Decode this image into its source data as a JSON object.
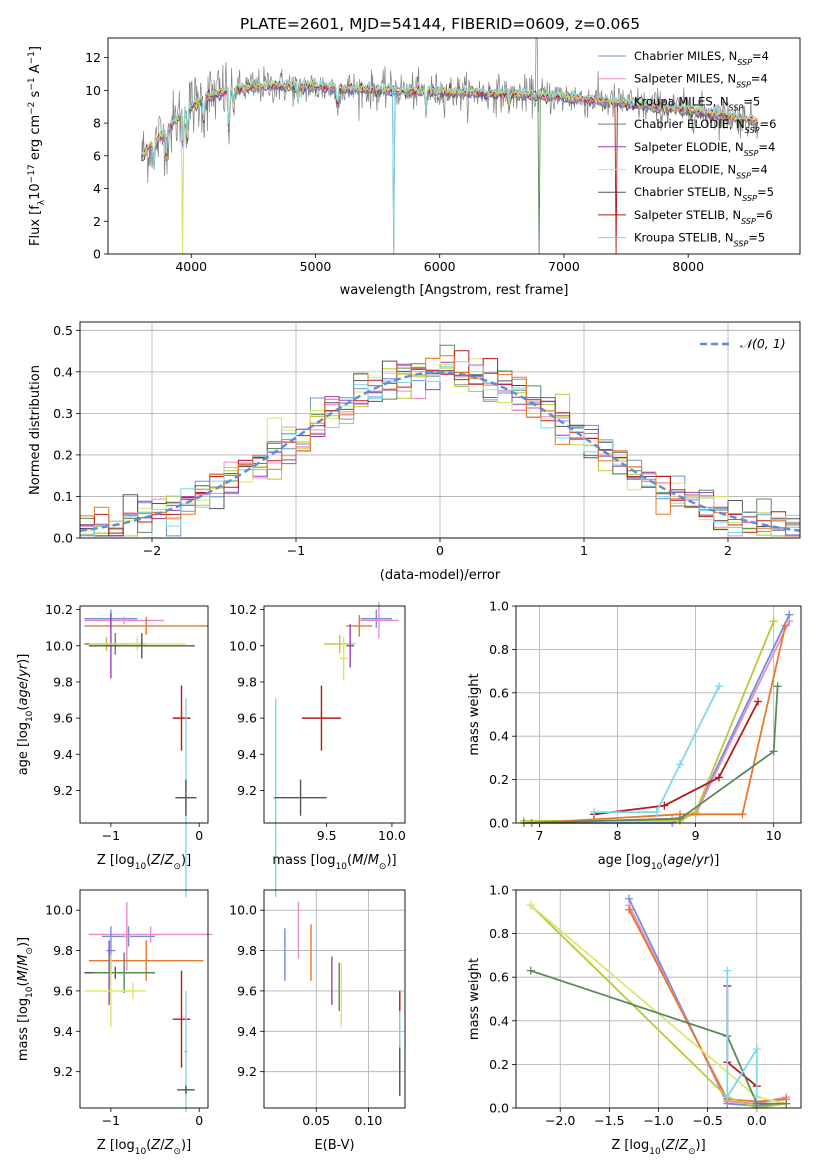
{
  "title": "PLATE=2601, MJD=54144, FIBERID=0609, z=0.065",
  "legend_labels": [
    "N",
    "SSP"
  ],
  "models": [
    {
      "name": "Chabrier MILES",
      "n": "=4",
      "color": "#6f8fdc"
    },
    {
      "name": "Salpeter MILES",
      "n": "=4",
      "color": "#e88cc8"
    },
    {
      "name": "Kroupa MILES",
      "n": "=5",
      "color": "#bcc83a"
    },
    {
      "name": "Chabrier ELODIE",
      "n": "=6",
      "color": "#5a8a5a"
    },
    {
      "name": "Salpeter ELODIE",
      "n": "=4",
      "color": "#9b3fc0"
    },
    {
      "name": "Kroupa ELODIE",
      "n": "=4",
      "color": "#d9e86a"
    },
    {
      "name": "Chabrier STELIB",
      "n": "=5",
      "color": "#555555"
    },
    {
      "name": "Salpeter STELIB",
      "n": "=6",
      "color": "#b81a1a"
    },
    {
      "name": "Kroupa STELIB",
      "n": "=5",
      "color": "#7dd8e8"
    }
  ],
  "extra_colors": {
    "orange": "#e8782a",
    "data": "#808080",
    "normal": "#5b8dd9"
  },
  "chart_data": [
    {
      "type": "line",
      "id": "spectrum",
      "xlabel": "wavelength [Angstrom, rest frame]",
      "ylabel_parts": [
        "Flux [f",
        "λ",
        "10",
        "−17",
        " erg cm",
        "−2",
        " s",
        "−1",
        " A",
        "−1",
        "]"
      ],
      "xlim": [
        3330,
        8900
      ],
      "ylim": [
        0,
        13.2
      ],
      "xticks": [
        4000,
        5000,
        6000,
        7000,
        8000
      ],
      "xtick_labels": [
        "4000",
        "5000",
        "6000",
        "7000",
        "8000"
      ],
      "yticks": [
        0,
        2,
        4,
        6,
        8,
        10,
        12
      ],
      "ytick_labels": [
        "0",
        "2",
        "4",
        "6",
        "8",
        "10",
        "12"
      ],
      "continuum_knots": [
        [
          3600,
          6.0
        ],
        [
          3700,
          6.8
        ],
        [
          3800,
          7.5
        ],
        [
          3950,
          8.8
        ],
        [
          4100,
          9.5
        ],
        [
          4300,
          10.0
        ],
        [
          4600,
          10.3
        ],
        [
          5000,
          10.2
        ],
        [
          5500,
          10.0
        ],
        [
          6000,
          9.9
        ],
        [
          6500,
          9.8
        ],
        [
          7000,
          9.6
        ],
        [
          7500,
          9.2
        ],
        [
          8000,
          8.8
        ],
        [
          8500,
          8.2
        ],
        [
          8550,
          8.0
        ]
      ]
    },
    {
      "type": "step",
      "id": "residuals",
      "xlabel": "(data-model)/error",
      "ylabel": "Normed distribution",
      "xlim": [
        -2.5,
        2.5
      ],
      "ylim": [
        0,
        0.52
      ],
      "xticks": [
        -2,
        -1,
        0,
        1,
        2
      ],
      "xtick_labels": [
        "−2",
        "−1",
        "0",
        "1",
        "2"
      ],
      "yticks": [
        0,
        0.1,
        0.2,
        0.3,
        0.4,
        0.5
      ],
      "ytick_labels": [
        "0.0",
        "0.1",
        "0.2",
        "0.3",
        "0.4",
        "0.5"
      ],
      "grid": true,
      "normal_label": "𝒩(0, 1)",
      "bin_width": 0.1
    },
    {
      "type": "errorbar",
      "id": "age_vs_Z",
      "xlabel": "Z [log10(Z/Z⊙)]",
      "ylabel": "age [log10(age/yr)]",
      "xlim": [
        -1.35,
        0.1
      ],
      "ylim": [
        9.02,
        10.22
      ],
      "xticks": [
        -1,
        0
      ],
      "xtick_labels": [
        "−1",
        "0"
      ],
      "yticks": [
        9.2,
        9.4,
        9.6,
        9.8,
        10.0,
        10.2
      ],
      "ytick_labels": [
        "9.2",
        "9.4",
        "9.6",
        "9.8",
        "10.0",
        "10.2"
      ],
      "points": [
        {
          "m": 0,
          "x": -1.0,
          "xerr": 0.3,
          "y": 10.15,
          "yerr": 0.05
        },
        {
          "m": 1,
          "x": -0.85,
          "xerr": 0.45,
          "y": 10.14,
          "yerr": 0.02
        },
        {
          "m": "orange",
          "x": -0.6,
          "xerr": 0.7,
          "y": 10.11,
          "yerr": 0.05
        },
        {
          "m": 2,
          "x": -1.05,
          "xerr": 0.25,
          "y": 10.01,
          "yerr": 0.04
        },
        {
          "m": 3,
          "x": -0.95,
          "xerr": 0.35,
          "y": 10.01,
          "yerr": 0.06
        },
        {
          "m": 4,
          "x": -1.0,
          "xerr": 0.05,
          "y": 10.0,
          "yerr": 0.18
        },
        {
          "m": 5,
          "x": -0.7,
          "xerr": 0.55,
          "y": 10.01,
          "yerr": 0.04
        },
        {
          "m": 6,
          "x": -0.65,
          "xerr": 0.6,
          "y": 10.0,
          "yerr": 0.07
        },
        {
          "m": 7,
          "x": -0.2,
          "xerr": 0.1,
          "y": 9.6,
          "yerr": 0.18
        },
        {
          "m": 8,
          "x": -0.15,
          "xerr": 0.1,
          "y": 9.16,
          "yerr": 0.55
        },
        {
          "m": 6,
          "x": -0.15,
          "xerr": 0.12,
          "y": 9.16,
          "yerr": 0.1
        }
      ]
    },
    {
      "type": "errorbar",
      "id": "age_vs_mass",
      "xlabel": "mass [log10(M/M⊙)]",
      "xlim": [
        9.02,
        10.1
      ],
      "ylim": [
        9.02,
        10.22
      ],
      "xticks": [
        9.5,
        10.0
      ],
      "xtick_labels": [
        "9.5",
        "10.0"
      ],
      "yticks": [
        9.2,
        9.4,
        9.6,
        9.8,
        10.0,
        10.2
      ],
      "ytick_labels": [
        "9.2",
        "9.4",
        "9.6",
        "9.8",
        "10.0",
        "10.2"
      ],
      "points": [
        {
          "m": 0,
          "x": 9.88,
          "xerr": 0.12,
          "y": 10.15,
          "yerr": 0.05
        },
        {
          "m": 1,
          "x": 9.9,
          "xerr": 0.15,
          "y": 10.14,
          "yerr": 0.1
        },
        {
          "m": "orange",
          "x": 9.75,
          "xerr": 0.1,
          "y": 10.11,
          "yerr": 0.06
        },
        {
          "m": 2,
          "x": 9.6,
          "xerr": 0.12,
          "y": 10.01,
          "yerr": 0.05
        },
        {
          "m": 4,
          "x": 9.68,
          "xerr": 0.03,
          "y": 10.0,
          "yerr": 0.12
        },
        {
          "m": 5,
          "x": 9.63,
          "xerr": 0.03,
          "y": 9.93,
          "yerr": 0.12
        },
        {
          "m": 7,
          "x": 9.46,
          "xerr": 0.15,
          "y": 9.6,
          "yerr": 0.18
        },
        {
          "m": 8,
          "x": 9.11,
          "xerr": 0.02,
          "y": 9.16,
          "yerr": 0.55
        },
        {
          "m": 6,
          "x": 9.3,
          "xerr": 0.2,
          "y": 9.16,
          "yerr": 0.1
        }
      ]
    },
    {
      "type": "line",
      "id": "massweight_vs_age",
      "xlabel": "age [log10(age/yr)]",
      "ylabel": "mass weight",
      "xlim": [
        6.7,
        10.35
      ],
      "ylim": [
        0,
        1
      ],
      "xticks": [
        7,
        8,
        9,
        10
      ],
      "xtick_labels": [
        "7",
        "8",
        "9",
        "10"
      ],
      "yticks": [
        0,
        0.2,
        0.4,
        0.6,
        0.8,
        1.0
      ],
      "ytick_labels": [
        "0.0",
        "0.2",
        "0.4",
        "0.6",
        "0.8",
        "1.0"
      ],
      "grid": true,
      "series": [
        {
          "m": 0,
          "x": [
            6.9,
            8.7,
            9.0,
            10.2
          ],
          "y": [
            0.0,
            0.0,
            0.05,
            0.96
          ]
        },
        {
          "m": 1,
          "x": [
            6.9,
            8.7,
            9.0,
            10.2
          ],
          "y": [
            0.0,
            0.02,
            0.04,
            0.93
          ]
        },
        {
          "m": 2,
          "x": [
            6.8,
            8.8,
            9.0,
            10.0
          ],
          "y": [
            0.01,
            0.01,
            0.05,
            0.93
          ]
        },
        {
          "m": "orange",
          "x": [
            6.9,
            8.8,
            9.6,
            10.15
          ],
          "y": [
            0.0,
            0.04,
            0.04,
            0.91
          ]
        },
        {
          "m": 7,
          "x": [
            7.7,
            8.6,
            9.3,
            9.8
          ],
          "y": [
            0.04,
            0.08,
            0.21,
            0.56
          ]
        },
        {
          "m": 3,
          "x": [
            6.8,
            8.8,
            10.0,
            10.05
          ],
          "y": [
            0.0,
            0.02,
            0.33,
            0.63
          ]
        },
        {
          "m": 8,
          "x": [
            7.7,
            8.5,
            8.8,
            9.3
          ],
          "y": [
            0.05,
            0.05,
            0.27,
            0.63
          ]
        }
      ]
    },
    {
      "type": "errorbar",
      "id": "mass_vs_Z",
      "xlabel": "Z [log10(Z/Z⊙)]",
      "ylabel": "mass [log10(M/M⊙)]",
      "xlim": [
        -1.35,
        0.1
      ],
      "ylim": [
        9.02,
        10.1
      ],
      "xticks": [
        -1,
        0
      ],
      "xtick_labels": [
        "−1",
        "0"
      ],
      "yticks": [
        9.2,
        9.4,
        9.6,
        9.8,
        10.0
      ],
      "ytick_labels": [
        "9.2",
        "9.4",
        "9.6",
        "9.8",
        "10.0"
      ],
      "points": [
        {
          "m": 1,
          "x": -0.55,
          "xerr": 0.7,
          "y": 9.88,
          "yerr": 0.04
        },
        {
          "m": 0,
          "x": -0.8,
          "xerr": 0.3,
          "y": 9.87,
          "yerr": 0.05
        },
        {
          "m": 1,
          "x": -0.82,
          "xerr": 0.05,
          "y": 9.87,
          "yerr": 0.17
        },
        {
          "m": "orange",
          "x": -0.6,
          "xerr": 0.65,
          "y": 9.75,
          "yerr": 0.1
        },
        {
          "m": 0,
          "x": -1.0,
          "xerr": 0.05,
          "y": 9.8,
          "yerr": 0.12
        },
        {
          "m": 6,
          "x": -0.95,
          "xerr": 0.35,
          "y": 9.69,
          "yerr": 0.03
        },
        {
          "m": 4,
          "x": -1.02,
          "xerr": 0.02,
          "y": 9.69,
          "yerr": 0.16
        },
        {
          "m": 3,
          "x": -0.85,
          "xerr": 0.35,
          "y": 9.69,
          "yerr": 0.1
        },
        {
          "m": 5,
          "x": -1.0,
          "xerr": 0.3,
          "y": 9.6,
          "yerr": 0.18
        },
        {
          "m": 5,
          "x": -0.75,
          "xerr": 0.15,
          "y": 9.6,
          "yerr": 0.04
        },
        {
          "m": 7,
          "x": -0.2,
          "xerr": 0.1,
          "y": 9.46,
          "yerr": 0.24
        },
        {
          "m": 8,
          "x": -0.15,
          "xerr": 0.02,
          "y": 9.3,
          "yerr": 0.3
        },
        {
          "m": 6,
          "x": -0.15,
          "xerr": 0.1,
          "y": 9.11,
          "yerr": 0.02
        }
      ]
    },
    {
      "type": "errorbar",
      "id": "mass_vs_ebv",
      "xlabel": "E(B-V)",
      "xlim": [
        0.0,
        0.135
      ],
      "ylim": [
        9.02,
        10.1
      ],
      "xticks": [
        0.05,
        0.1
      ],
      "xtick_labels": [
        "0.05",
        "0.10"
      ],
      "yticks": [
        9.2,
        9.4,
        9.6,
        9.8,
        10.0
      ],
      "ytick_labels": [
        "9.2",
        "9.4",
        "9.6",
        "9.8",
        "10.0"
      ],
      "grid": true,
      "points": [
        {
          "m": 0,
          "x": 0.02,
          "xerr": 0.0,
          "y": 9.78,
          "yerr": 0.13
        },
        {
          "m": 1,
          "x": 0.033,
          "xerr": 0.0,
          "y": 9.9,
          "yerr": 0.14
        },
        {
          "m": "orange",
          "x": 0.045,
          "xerr": 0.0,
          "y": 9.79,
          "yerr": 0.14
        },
        {
          "m": 4,
          "x": 0.065,
          "xerr": 0.0,
          "y": 9.65,
          "yerr": 0.12
        },
        {
          "m": 3,
          "x": 0.072,
          "xerr": 0.0,
          "y": 9.62,
          "yerr": 0.12
        },
        {
          "m": 5,
          "x": 0.074,
          "xerr": 0.0,
          "y": 9.58,
          "yerr": 0.16
        },
        {
          "m": 7,
          "x": 0.13,
          "xerr": 0.0,
          "y": 9.46,
          "yerr": 0.14
        },
        {
          "m": 8,
          "x": 0.13,
          "xerr": 0.0,
          "y": 9.3,
          "yerr": 0.2
        },
        {
          "m": 6,
          "x": 0.13,
          "xerr": 0.0,
          "y": 9.2,
          "yerr": 0.12
        }
      ]
    },
    {
      "type": "line",
      "id": "massweight_vs_Z",
      "xlabel": "Z [log10(Z/Z⊙)]",
      "ylabel": "mass weight",
      "xlim": [
        -2.45,
        0.45
      ],
      "ylim": [
        0,
        1
      ],
      "xticks": [
        -2.0,
        -1.5,
        -1.0,
        -0.5,
        0.0
      ],
      "xtick_labels": [
        "−2.0",
        "−1.5",
        "−1.0",
        "−0.5",
        "0.0"
      ],
      "yticks": [
        0,
        0.2,
        0.4,
        0.6,
        0.8,
        1.0
      ],
      "ytick_labels": [
        "0.0",
        "0.2",
        "0.4",
        "0.6",
        "0.8",
        "1.0"
      ],
      "grid": true,
      "series": [
        {
          "m": 0,
          "x": [
            -1.3,
            -0.3,
            0.0,
            0.3
          ],
          "y": [
            0.96,
            0.02,
            0.01,
            0.02
          ]
        },
        {
          "m": 1,
          "x": [
            -1.3,
            -0.3,
            0.0,
            0.3
          ],
          "y": [
            0.93,
            0.03,
            0.02,
            0.05
          ]
        },
        {
          "m": "orange",
          "x": [
            -1.3,
            -0.3,
            0.0,
            0.3
          ],
          "y": [
            0.91,
            0.04,
            0.03,
            0.04
          ]
        },
        {
          "m": 2,
          "x": [
            -2.3,
            -0.3,
            0.0,
            0.3
          ],
          "y": [
            0.93,
            0.05,
            0.0,
            0.02
          ]
        },
        {
          "m": 5,
          "x": [
            -2.3,
            0.0,
            0.3
          ],
          "y": [
            0.93,
            0.05,
            0.02
          ]
        },
        {
          "m": 7,
          "x": [
            -0.3,
            -0.3,
            0.0
          ],
          "y": [
            0.56,
            0.21,
            0.1
          ]
        },
        {
          "m": 3,
          "x": [
            -2.3,
            -0.3,
            0.0,
            0.3
          ],
          "y": [
            0.63,
            0.33,
            0.02,
            0.02
          ]
        },
        {
          "m": 8,
          "x": [
            -0.3,
            -0.3,
            0.0,
            0.0
          ],
          "y": [
            0.63,
            0.05,
            0.27,
            0.05
          ]
        }
      ]
    }
  ]
}
